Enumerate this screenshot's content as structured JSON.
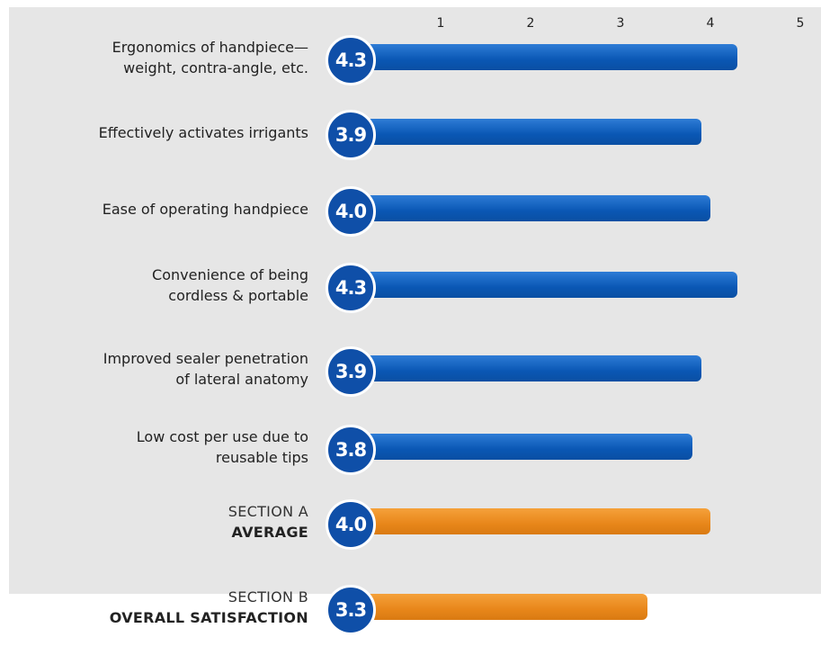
{
  "chart_data": {
    "type": "bar",
    "orientation": "horizontal",
    "axis_ticks": [
      "1",
      "2",
      "3",
      "4",
      "5"
    ],
    "xlim": [
      0,
      5
    ],
    "categories": [
      [
        "Ergonomics of handpiece—",
        "weight, contra-angle, etc."
      ],
      [
        "Effectively activates irrigants"
      ],
      [
        "Ease of operating handpiece"
      ],
      [
        "Convenience of being",
        "cordless & portable"
      ],
      [
        "Improved sealer penetration",
        "of lateral anatomy"
      ],
      [
        "Low cost per use due to",
        "reusable tips"
      ],
      [
        "SECTION A",
        "AVERAGE"
      ],
      [
        "SECTION B",
        "OVERALL SATISFACTION"
      ]
    ],
    "values": [
      4.3,
      3.9,
      4.0,
      4.3,
      3.9,
      3.8,
      4.0,
      3.3
    ],
    "value_labels": [
      "4.3",
      "3.9",
      "4.0",
      "4.3",
      "3.9",
      "3.8",
      "4.0",
      "3.3"
    ],
    "bar_colors": [
      "#0a57b4",
      "#0a57b4",
      "#0a57b4",
      "#0a57b4",
      "#0a57b4",
      "#0a57b4",
      "#e8861a",
      "#e8861a"
    ],
    "badge_color": "#0f4fa8",
    "background_color": "#e6e6e6",
    "grid": false
  }
}
